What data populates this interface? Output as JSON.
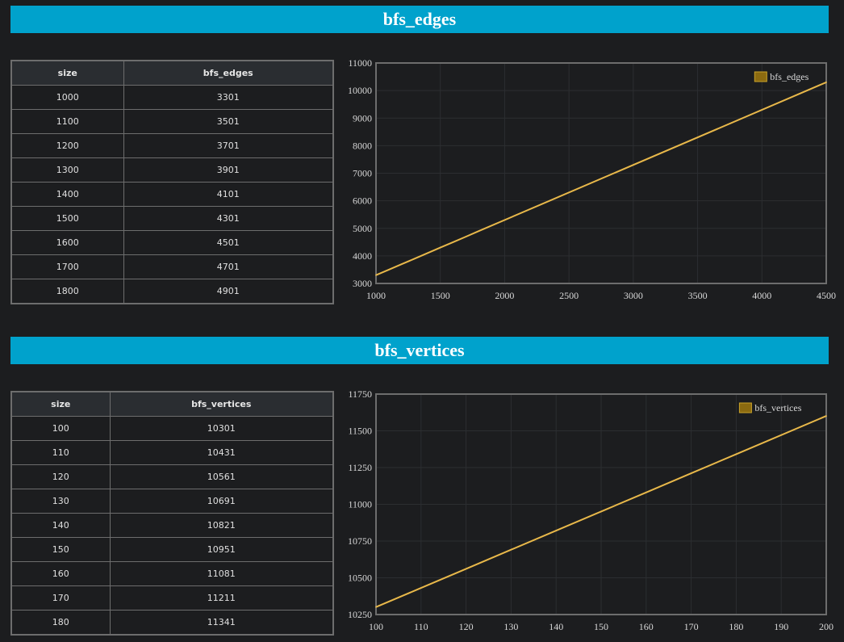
{
  "sections": [
    {
      "title": "bfs_edges",
      "table": {
        "headers": [
          "size",
          "bfs_edges"
        ],
        "rows": [
          [
            "1000",
            "3301"
          ],
          [
            "1100",
            "3501"
          ],
          [
            "1200",
            "3701"
          ],
          [
            "1300",
            "3901"
          ],
          [
            "1400",
            "4101"
          ],
          [
            "1500",
            "4301"
          ],
          [
            "1600",
            "4501"
          ],
          [
            "1700",
            "4701"
          ],
          [
            "1800",
            "4901"
          ]
        ]
      }
    },
    {
      "title": "bfs_vertices",
      "table": {
        "headers": [
          "size",
          "bfs_vertices"
        ],
        "rows": [
          [
            "100",
            "10301"
          ],
          [
            "110",
            "10431"
          ],
          [
            "120",
            "10561"
          ],
          [
            "130",
            "10691"
          ],
          [
            "140",
            "10821"
          ],
          [
            "150",
            "10951"
          ],
          [
            "160",
            "11081"
          ],
          [
            "170",
            "11211"
          ],
          [
            "180",
            "11341"
          ]
        ]
      }
    }
  ],
  "chart_data": [
    {
      "type": "line",
      "title": "",
      "xlabel": "",
      "ylabel": "",
      "xlim": [
        1000,
        4500
      ],
      "ylim": [
        3000,
        11000
      ],
      "xticks": [
        1000,
        1500,
        2000,
        2500,
        3000,
        3500,
        4000,
        4500
      ],
      "yticks": [
        3000,
        4000,
        5000,
        6000,
        7000,
        8000,
        9000,
        10000,
        11000
      ],
      "grid": true,
      "legend": "top-right",
      "series": [
        {
          "name": "bfs_edges",
          "color": "#e8b84a",
          "x": [
            1000,
            1100,
            1200,
            1300,
            1400,
            1500,
            1600,
            1700,
            1800,
            4500
          ],
          "y": [
            3301,
            3501,
            3701,
            3901,
            4101,
            4301,
            4501,
            4701,
            4901,
            10301
          ]
        }
      ]
    },
    {
      "type": "line",
      "title": "",
      "xlabel": "",
      "ylabel": "",
      "xlim": [
        100,
        200
      ],
      "ylim": [
        10250,
        11750
      ],
      "xticks": [
        100,
        110,
        120,
        130,
        140,
        150,
        160,
        170,
        180,
        190,
        200
      ],
      "yticks": [
        10250,
        10500,
        10750,
        11000,
        11250,
        11500,
        11750
      ],
      "grid": true,
      "legend": "top-right",
      "series": [
        {
          "name": "bfs_vertices",
          "color": "#e8b84a",
          "x": [
            100,
            110,
            120,
            130,
            140,
            150,
            160,
            170,
            180,
            200
          ],
          "y": [
            10301,
            10431,
            10561,
            10691,
            10821,
            10951,
            11081,
            11211,
            11341,
            11601
          ]
        }
      ]
    }
  ]
}
